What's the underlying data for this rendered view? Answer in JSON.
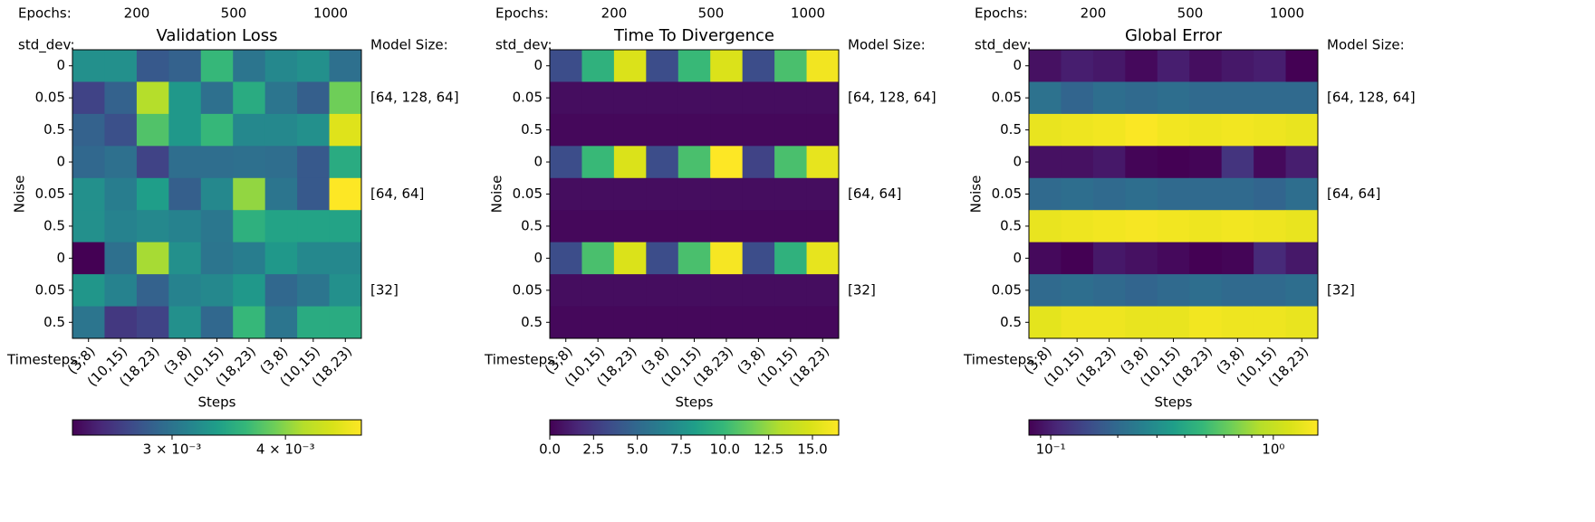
{
  "chart_data": [
    {
      "type": "heatmap",
      "title": "Validation Loss",
      "xlabel": "Steps",
      "ylabel": "Noise",
      "x_title": "Timesteps:",
      "categories": [
        "(3,8)",
        "(10,15)",
        "(18,23)",
        "(3,8)",
        "(10,15)",
        "(18,23)",
        "(3,8)",
        "(10,15)",
        "(18,23)"
      ],
      "y_title": "std_dev:",
      "y_categories": [
        "0",
        "0.05",
        "0.5",
        "0",
        "0.05",
        "0.5",
        "0",
        "0.05",
        "0.5"
      ],
      "group_title": "Epochs:",
      "groups": [
        "200",
        "500",
        "1000"
      ],
      "right_title": "Model Size:",
      "right_labels": [
        "[64, 128, 64]",
        "[64, 64]",
        "[32]"
      ],
      "colormap": "viridis",
      "values": [
        [
          0.00324,
          0.00324,
          0.0028,
          0.00286,
          0.00362,
          0.00301,
          0.00317,
          0.00324,
          0.00297
        ],
        [
          0.00266,
          0.00286,
          0.00419,
          0.00331,
          0.00297,
          0.00349,
          0.00301,
          0.00284,
          0.00389
        ],
        [
          0.00286,
          0.00274,
          0.00375,
          0.00331,
          0.00362,
          0.00317,
          0.00317,
          0.00324,
          0.00457
        ],
        [
          0.0029,
          0.00297,
          0.00266,
          0.00295,
          0.00295,
          0.00297,
          0.00295,
          0.0028,
          0.00349
        ],
        [
          0.00324,
          0.00308,
          0.00336,
          0.00284,
          0.00317,
          0.00404,
          0.00301,
          0.0028,
          0.00485
        ],
        [
          0.00324,
          0.00312,
          0.00317,
          0.00312,
          0.00303,
          0.00354,
          0.00341,
          0.00341,
          0.00341
        ],
        [
          0.00233,
          0.00297,
          0.00413,
          0.00324,
          0.00301,
          0.00308,
          0.00331,
          0.00317,
          0.00317
        ],
        [
          0.00329,
          0.00312,
          0.00286,
          0.00312,
          0.00317,
          0.00331,
          0.0029,
          0.00301,
          0.00324
        ],
        [
          0.00301,
          0.0026,
          0.00266,
          0.00324,
          0.0029,
          0.00362,
          0.00301,
          0.00349,
          0.00349
        ]
      ],
      "colorbar": {
        "scale": "log",
        "lim": [
          0.00233,
          0.00485
        ],
        "ticks": [
          {
            "value": 0.003,
            "label": "3 × 10⁻³"
          },
          {
            "value": 0.004,
            "label": "4 × 10⁻³"
          }
        ]
      }
    },
    {
      "type": "heatmap",
      "title": "Time To Divergence",
      "xlabel": "Steps",
      "ylabel": "Noise",
      "x_title": "Timesteps:",
      "categories": [
        "(3,8)",
        "(10,15)",
        "(18,23)",
        "(3,8)",
        "(10,15)",
        "(18,23)",
        "(3,8)",
        "(10,15)",
        "(18,23)"
      ],
      "y_title": "std_dev:",
      "y_categories": [
        "0",
        "0.05",
        "0.5",
        "0",
        "0.05",
        "0.5",
        "0",
        "0.05",
        "0.5"
      ],
      "group_title": "Epochs:",
      "groups": [
        "200",
        "500",
        "1000"
      ],
      "right_title": "Model Size:",
      "right_labels": [
        "[64, 128, 64]",
        "[64, 64]",
        "[32]"
      ],
      "colormap": "viridis",
      "values": [
        [
          3.5,
          9.5,
          15,
          3.5,
          10,
          15,
          3.5,
          10.5,
          16
        ],
        [
          0.5,
          0.5,
          0.5,
          0.5,
          0.5,
          0.5,
          0.5,
          0.5,
          0.5
        ],
        [
          0.3,
          0.3,
          0.3,
          0.3,
          0.3,
          0.3,
          0.3,
          0.3,
          0.3
        ],
        [
          3.5,
          10,
          15,
          3.5,
          10.5,
          16.5,
          3,
          10.5,
          15.5
        ],
        [
          0.5,
          0.5,
          0.5,
          0.5,
          0.5,
          0.5,
          0.5,
          0.5,
          0.5
        ],
        [
          0.3,
          0.3,
          0.3,
          0.3,
          0.3,
          0.3,
          0.3,
          0.3,
          0.3
        ],
        [
          3.5,
          10.5,
          15,
          3.5,
          10.5,
          16.2,
          3.5,
          9.5,
          15.5
        ],
        [
          0.5,
          0.5,
          0.5,
          0.5,
          0.5,
          0.5,
          0.5,
          0.5,
          0.5
        ],
        [
          0.3,
          0.3,
          0.3,
          0.3,
          0.3,
          0.3,
          0.3,
          0.3,
          0.3
        ]
      ],
      "colorbar": {
        "scale": "linear",
        "lim": [
          0,
          16.5
        ],
        "ticks": [
          {
            "value": 0,
            "label": "0.0"
          },
          2.5,
          {
            "value": 5,
            "label": "5.0"
          },
          7.5,
          {
            "value": 10,
            "label": "10.0"
          },
          12.5,
          {
            "value": 15,
            "label": "15.0"
          }
        ]
      }
    },
    {
      "type": "heatmap",
      "title": "Global Error",
      "xlabel": "Steps",
      "ylabel": "Noise",
      "x_title": "Timesteps:",
      "categories": [
        "(3,8)",
        "(10,15)",
        "(18,23)",
        "(3,8)",
        "(10,15)",
        "(18,23)",
        "(3,8)",
        "(10,15)",
        "(18,23)"
      ],
      "y_title": "std_dev:",
      "y_categories": [
        "0",
        "0.05",
        "0.5",
        "0",
        "0.05",
        "0.5",
        "0",
        "0.05",
        "0.5"
      ],
      "group_title": "Epochs:",
      "groups": [
        "200",
        "500",
        "1000"
      ],
      "right_title": "Model Size:",
      "right_labels": [
        "[64, 128, 64]",
        "[64, 64]",
        "[32]"
      ],
      "colormap": "viridis",
      "values": [
        [
          0.09,
          0.1,
          0.095,
          0.085,
          0.1,
          0.088,
          0.095,
          0.1,
          0.08
        ],
        [
          0.22,
          0.19,
          0.21,
          0.2,
          0.21,
          0.2,
          0.2,
          0.2,
          0.2
        ],
        [
          1.35,
          1.4,
          1.45,
          1.55,
          1.45,
          1.4,
          1.45,
          1.4,
          1.35
        ],
        [
          0.09,
          0.09,
          0.095,
          0.082,
          0.08,
          0.082,
          0.12,
          0.085,
          0.1
        ],
        [
          0.2,
          0.21,
          0.2,
          0.21,
          0.2,
          0.2,
          0.2,
          0.19,
          0.21
        ],
        [
          1.35,
          1.4,
          1.45,
          1.5,
          1.45,
          1.4,
          1.45,
          1.4,
          1.35
        ],
        [
          0.085,
          0.08,
          0.095,
          0.09,
          0.085,
          0.08,
          0.082,
          0.11,
          0.095
        ],
        [
          0.2,
          0.21,
          0.2,
          0.19,
          0.2,
          0.21,
          0.2,
          0.2,
          0.21
        ],
        [
          1.3,
          1.4,
          1.4,
          1.35,
          1.35,
          1.45,
          1.4,
          1.4,
          1.35
        ]
      ],
      "colorbar": {
        "scale": "log",
        "lim": [
          0.0798,
          1.585
        ],
        "ticks": [
          {
            "value": 0.1,
            "label": "10⁻¹"
          },
          {
            "value": 1,
            "label": "10⁰"
          }
        ],
        "minor_ticks": [
          0.09,
          0.2,
          0.3,
          0.4,
          0.5,
          0.6,
          0.7,
          0.8,
          0.9
        ]
      }
    }
  ]
}
